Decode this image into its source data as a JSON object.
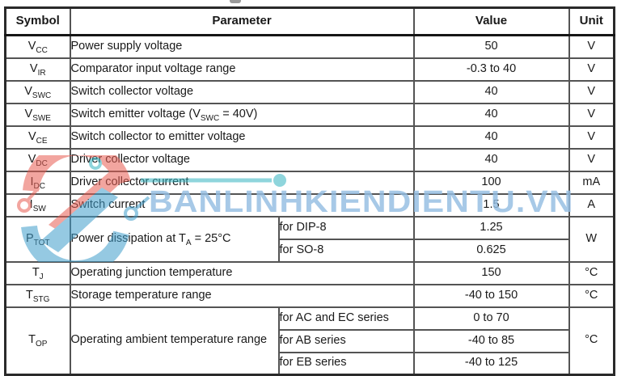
{
  "watermark": {
    "text": "BANLINHKIENDIENTU.VN",
    "text_color": "#94bde2",
    "logo_red": "#e85c52",
    "logo_blue": "#3f9ecb",
    "logo_teal": "#35b4c0"
  },
  "table": {
    "headers": [
      "Symbol",
      "Parameter",
      "Value",
      "Unit"
    ],
    "rows": [
      {
        "symbol": [
          "V",
          {
            "sub": "CC"
          }
        ],
        "parameter": [
          "Power supply voltage"
        ],
        "value": "50",
        "unit": "V"
      },
      {
        "symbol": [
          "V",
          {
            "sub": "IR"
          }
        ],
        "parameter": [
          "Comparator input voltage range"
        ],
        "value": "-0.3 to 40",
        "unit": "V"
      },
      {
        "symbol": [
          "V",
          {
            "sub": "SWC"
          }
        ],
        "parameter": [
          "Switch collector voltage"
        ],
        "value": "40",
        "unit": "V"
      },
      {
        "symbol": [
          "V",
          {
            "sub": "SWE"
          }
        ],
        "parameter": [
          "Switch emitter voltage (V",
          {
            "sub": "SWC"
          },
          " = 40V)"
        ],
        "value": "40",
        "unit": "V"
      },
      {
        "symbol": [
          "V",
          {
            "sub": "CE"
          }
        ],
        "parameter": [
          "Switch collector to emitter voltage"
        ],
        "value": "40",
        "unit": "V"
      },
      {
        "symbol": [
          "V",
          {
            "sub": "DC"
          }
        ],
        "parameter": [
          "Driver collector voltage"
        ],
        "value": "40",
        "unit": "V"
      },
      {
        "symbol": [
          "I",
          {
            "sub": "DC"
          }
        ],
        "parameter": [
          "Driver collector current"
        ],
        "value": "100",
        "unit": "mA"
      },
      {
        "symbol": [
          "I",
          {
            "sub": "SW"
          }
        ],
        "parameter": [
          "Switch current"
        ],
        "value": "1.5",
        "unit": "A"
      },
      {
        "symbol": [
          "P",
          {
            "sub": "TOT"
          }
        ],
        "parameter": [
          "Power dissipation at T",
          {
            "sub": "A"
          },
          " = 25°C"
        ],
        "unit": "W",
        "sub_rows": [
          {
            "condition": "for DIP-8",
            "value": "1.25"
          },
          {
            "condition": "for SO-8",
            "value": "0.625"
          }
        ]
      },
      {
        "symbol": [
          "T",
          {
            "sub": "J"
          }
        ],
        "parameter": [
          "Operating junction temperature"
        ],
        "value": "150",
        "unit": "°C"
      },
      {
        "symbol": [
          "T",
          {
            "sub": "STG"
          }
        ],
        "parameter": [
          "Storage temperature range"
        ],
        "value": "-40 to 150",
        "unit": "°C"
      },
      {
        "symbol": [
          "T",
          {
            "sub": "OP"
          }
        ],
        "parameter": [
          "Operating ambient temperature range"
        ],
        "unit": "°C",
        "sub_rows": [
          {
            "condition": "for AC and EC series",
            "value": "0 to 70"
          },
          {
            "condition": "for AB series",
            "value": "-40 to 85"
          },
          {
            "condition": "for EB series",
            "value": "-40 to 125"
          }
        ]
      }
    ]
  }
}
